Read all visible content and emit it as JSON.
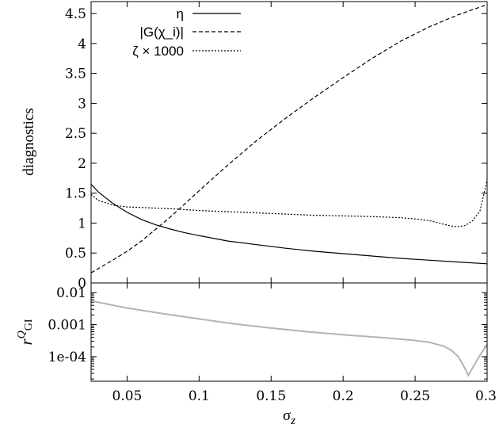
{
  "chart_data": [
    {
      "type": "line",
      "ylabel": "diagnostics",
      "xlim": [
        0.025,
        0.3
      ],
      "ylim": [
        0,
        4.7
      ],
      "yticks": [
        "0",
        "0.5",
        "1",
        "1.5",
        "2",
        "2.5",
        "3",
        "3.5",
        "4",
        "4.5"
      ],
      "ytick_values": [
        0,
        0.5,
        1,
        1.5,
        2,
        2.5,
        3,
        3.5,
        4,
        4.5
      ],
      "legend_position": "top-center",
      "series": [
        {
          "name": "η",
          "style": "solid",
          "color": "#000000",
          "x": [
            0.025,
            0.03,
            0.04,
            0.05,
            0.06,
            0.07,
            0.08,
            0.09,
            0.1,
            0.12,
            0.14,
            0.16,
            0.18,
            0.2,
            0.22,
            0.24,
            0.26,
            0.28,
            0.3
          ],
          "y": [
            1.65,
            1.52,
            1.33,
            1.18,
            1.06,
            0.97,
            0.9,
            0.84,
            0.79,
            0.7,
            0.64,
            0.58,
            0.53,
            0.49,
            0.45,
            0.41,
            0.38,
            0.35,
            0.32
          ]
        },
        {
          "name": "|G(χ_i)|",
          "style": "dashed",
          "color": "#000000",
          "x": [
            0.025,
            0.03,
            0.04,
            0.05,
            0.06,
            0.07,
            0.08,
            0.09,
            0.1,
            0.12,
            0.14,
            0.16,
            0.18,
            0.2,
            0.22,
            0.24,
            0.26,
            0.28,
            0.3
          ],
          "y": [
            0.17,
            0.24,
            0.38,
            0.53,
            0.7,
            0.9,
            1.1,
            1.32,
            1.54,
            1.97,
            2.38,
            2.75,
            3.1,
            3.43,
            3.75,
            4.04,
            4.28,
            4.48,
            4.65
          ]
        },
        {
          "name": "ζ × 1000",
          "style": "dotted",
          "color": "#000000",
          "x": [
            0.025,
            0.03,
            0.04,
            0.05,
            0.06,
            0.07,
            0.08,
            0.1,
            0.12,
            0.14,
            0.16,
            0.18,
            0.2,
            0.22,
            0.24,
            0.25,
            0.26,
            0.27,
            0.275,
            0.28,
            0.285,
            0.29,
            0.295,
            0.3
          ],
          "y": [
            1.48,
            1.38,
            1.3,
            1.27,
            1.26,
            1.25,
            1.24,
            1.21,
            1.19,
            1.17,
            1.15,
            1.13,
            1.12,
            1.11,
            1.09,
            1.07,
            1.04,
            0.98,
            0.95,
            0.94,
            0.96,
            1.04,
            1.2,
            1.72
          ]
        }
      ]
    },
    {
      "type": "line",
      "xlabel": "σ_z",
      "ylabel": "r^Q_GI",
      "xlim": [
        0.025,
        0.3
      ],
      "yscale": "log",
      "ylim": [
        1.7e-05,
        0.02
      ],
      "yticks": [
        "1e-04",
        "0.001",
        "0.01"
      ],
      "ytick_values": [
        0.0001,
        0.001,
        0.01
      ],
      "xticks": [
        "0.05",
        "0.1",
        "0.15",
        "0.2",
        "0.25",
        "0.3"
      ],
      "xtick_values": [
        0.05,
        0.1,
        0.15,
        0.2,
        0.25,
        0.3
      ],
      "series": [
        {
          "style": "solid",
          "color": "#b3b3b3",
          "x": [
            0.025,
            0.05,
            0.075,
            0.1,
            0.125,
            0.15,
            0.175,
            0.2,
            0.225,
            0.25,
            0.26,
            0.27,
            0.275,
            0.28,
            0.285,
            0.287,
            0.29,
            0.295,
            0.3
          ],
          "y": [
            0.0055,
            0.0033,
            0.0022,
            0.0015,
            0.00105,
            0.00078,
            0.0006,
            0.00048,
            0.0004,
            0.00032,
            0.00028,
            0.00021,
            0.00016,
            0.0001,
            4e-05,
            2.6e-05,
            4.5e-05,
            0.00011,
            0.00024
          ]
        }
      ]
    }
  ]
}
